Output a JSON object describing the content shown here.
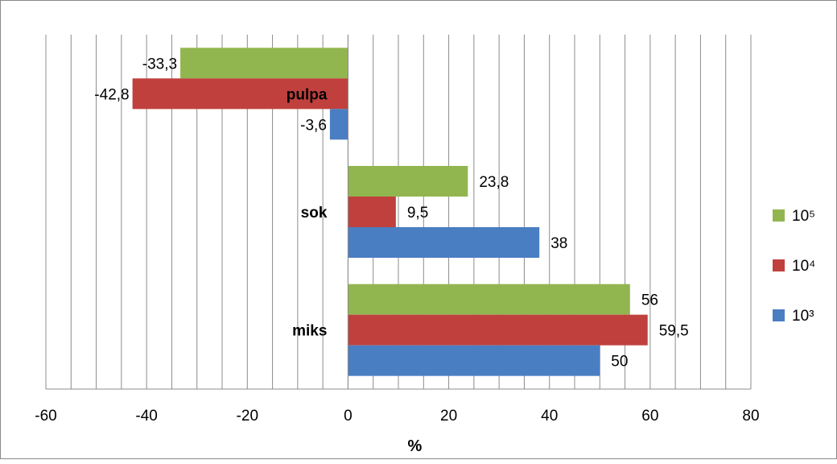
{
  "chart_data": {
    "type": "bar",
    "orientation": "horizontal",
    "categories": [
      "pulpa",
      "sok",
      "miks"
    ],
    "series": [
      {
        "name": "10⁵",
        "color": "#92b64f",
        "values": [
          -33.3,
          23.8,
          56
        ]
      },
      {
        "name": "10⁴",
        "color": "#c0403d",
        "values": [
          -42.8,
          9.5,
          59.5
        ]
      },
      {
        "name": "10³",
        "color": "#4a7ec3",
        "values": [
          -3.6,
          38,
          50
        ]
      }
    ],
    "data_labels": [
      [
        "-33,3",
        "23,8",
        "56"
      ],
      [
        "-42,8",
        "9,5",
        "59,5"
      ],
      [
        "-3,6",
        "38",
        "50"
      ]
    ],
    "xlabel": "%",
    "ylabel": "",
    "xlim": [
      -60,
      80
    ],
    "x_ticks": [
      -60,
      -40,
      -20,
      0,
      20,
      40,
      60,
      80
    ],
    "x_tick_labels": [
      "-60",
      "-40",
      "-20",
      "0",
      "20",
      "40",
      "60",
      "80"
    ],
    "grid": "vertical",
    "legend_position": "right"
  }
}
